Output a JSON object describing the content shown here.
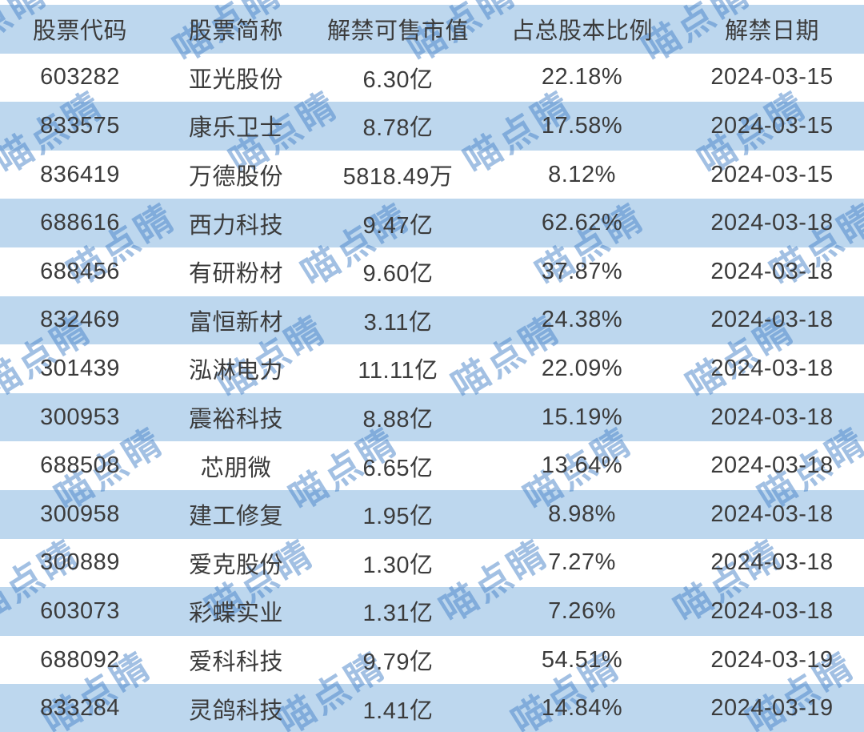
{
  "watermark": {
    "text": "喵点睛",
    "color": "#4682c8"
  },
  "colors": {
    "stripe": "#bdd7ee",
    "background": "#ffffff",
    "text": "#3b3b3b"
  },
  "table": {
    "columns": [
      "股票代码",
      "股票简称",
      "解禁可售市值",
      "占总股本比例",
      "解禁日期"
    ],
    "rows": [
      [
        "603282",
        "亚光股份",
        "6.30亿",
        "22.18%",
        "2024-03-15"
      ],
      [
        "833575",
        "康乐卫士",
        "8.78亿",
        "17.58%",
        "2024-03-15"
      ],
      [
        "836419",
        "万德股份",
        "5818.49万",
        "8.12%",
        "2024-03-15"
      ],
      [
        "688616",
        "西力科技",
        "9.47亿",
        "62.62%",
        "2024-03-18"
      ],
      [
        "688456",
        "有研粉材",
        "9.60亿",
        "37.87%",
        "2024-03-18"
      ],
      [
        "832469",
        "富恒新材",
        "3.11亿",
        "24.38%",
        "2024-03-18"
      ],
      [
        "301439",
        "泓淋电力",
        "11.11亿",
        "22.09%",
        "2024-03-18"
      ],
      [
        "300953",
        "震裕科技",
        "8.88亿",
        "15.19%",
        "2024-03-18"
      ],
      [
        "688508",
        "芯朋微",
        "6.65亿",
        "13.64%",
        "2024-03-18"
      ],
      [
        "300958",
        "建工修复",
        "1.95亿",
        "8.98%",
        "2024-03-18"
      ],
      [
        "300889",
        "爱克股份",
        "1.30亿",
        "7.27%",
        "2024-03-18"
      ],
      [
        "603073",
        "彩蝶实业",
        "1.31亿",
        "7.26%",
        "2024-03-18"
      ],
      [
        "688092",
        "爱科科技",
        "9.79亿",
        "54.51%",
        "2024-03-19"
      ],
      [
        "833284",
        "灵鸽科技",
        "1.41亿",
        "14.84%",
        "2024-03-19"
      ]
    ]
  },
  "chart_data": {
    "type": "table",
    "title": "解禁股列表",
    "columns": [
      "股票代码",
      "股票简称",
      "解禁可售市值",
      "占总股本比例",
      "解禁日期"
    ],
    "rows": [
      {
        "code": "603282",
        "name": "亚光股份",
        "unlock_value": "6.30亿",
        "pct_of_total": 22.18,
        "date": "2024-03-15"
      },
      {
        "code": "833575",
        "name": "康乐卫士",
        "unlock_value": "8.78亿",
        "pct_of_total": 17.58,
        "date": "2024-03-15"
      },
      {
        "code": "836419",
        "name": "万德股份",
        "unlock_value": "5818.49万",
        "pct_of_total": 8.12,
        "date": "2024-03-15"
      },
      {
        "code": "688616",
        "name": "西力科技",
        "unlock_value": "9.47亿",
        "pct_of_total": 62.62,
        "date": "2024-03-18"
      },
      {
        "code": "688456",
        "name": "有研粉材",
        "unlock_value": "9.60亿",
        "pct_of_total": 37.87,
        "date": "2024-03-18"
      },
      {
        "code": "832469",
        "name": "富恒新材",
        "unlock_value": "3.11亿",
        "pct_of_total": 24.38,
        "date": "2024-03-18"
      },
      {
        "code": "301439",
        "name": "泓淋电力",
        "unlock_value": "11.11亿",
        "pct_of_total": 22.09,
        "date": "2024-03-18"
      },
      {
        "code": "300953",
        "name": "震裕科技",
        "unlock_value": "8.88亿",
        "pct_of_total": 15.19,
        "date": "2024-03-18"
      },
      {
        "code": "688508",
        "name": "芯朋微",
        "unlock_value": "6.65亿",
        "pct_of_total": 13.64,
        "date": "2024-03-18"
      },
      {
        "code": "300958",
        "name": "建工修复",
        "unlock_value": "1.95亿",
        "pct_of_total": 8.98,
        "date": "2024-03-18"
      },
      {
        "code": "300889",
        "name": "爱克股份",
        "unlock_value": "1.30亿",
        "pct_of_total": 7.27,
        "date": "2024-03-18"
      },
      {
        "code": "603073",
        "name": "彩蝶实业",
        "unlock_value": "1.31亿",
        "pct_of_total": 7.26,
        "date": "2024-03-18"
      },
      {
        "code": "688092",
        "name": "爱科科技",
        "unlock_value": "9.79亿",
        "pct_of_total": 54.51,
        "date": "2024-03-19"
      },
      {
        "code": "833284",
        "name": "灵鸽科技",
        "unlock_value": "1.41亿",
        "pct_of_total": 14.84,
        "date": "2024-03-19"
      }
    ]
  }
}
